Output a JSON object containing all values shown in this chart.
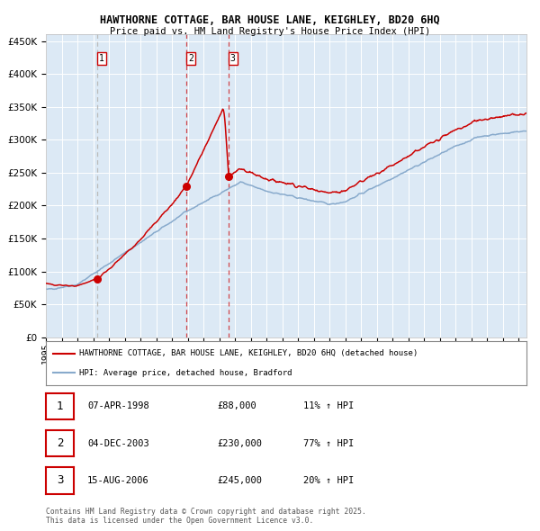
{
  "title": "HAWTHORNE COTTAGE, BAR HOUSE LANE, KEIGHLEY, BD20 6HQ",
  "subtitle": "Price paid vs. HM Land Registry's House Price Index (HPI)",
  "legend_line1": "HAWTHORNE COTTAGE, BAR HOUSE LANE, KEIGHLEY, BD20 6HQ (detached house)",
  "legend_line2": "HPI: Average price, detached house, Bradford",
  "footer": "Contains HM Land Registry data © Crown copyright and database right 2025.\nThis data is licensed under the Open Government Licence v3.0.",
  "sales": [
    {
      "num": 1,
      "date": "07-APR-1998",
      "price": "£88,000",
      "hpi_change": "11% ↑ HPI",
      "year": 1998.27
    },
    {
      "num": 2,
      "date": "04-DEC-2003",
      "price": "£230,000",
      "hpi_change": "77% ↑ HPI",
      "year": 2003.92
    },
    {
      "num": 3,
      "date": "15-AUG-2006",
      "price": "£245,000",
      "hpi_change": "20% ↑ HPI",
      "year": 2006.62
    }
  ],
  "red_line_color": "#cc0000",
  "blue_line_color": "#88aacc",
  "ylim": [
    0,
    460000
  ],
  "yticks": [
    0,
    50000,
    100000,
    150000,
    200000,
    250000,
    300000,
    350000,
    400000,
    450000
  ],
  "xlim_start": 1995.0,
  "xlim_end": 2025.5,
  "plot_bg_color": "#dce9f5"
}
